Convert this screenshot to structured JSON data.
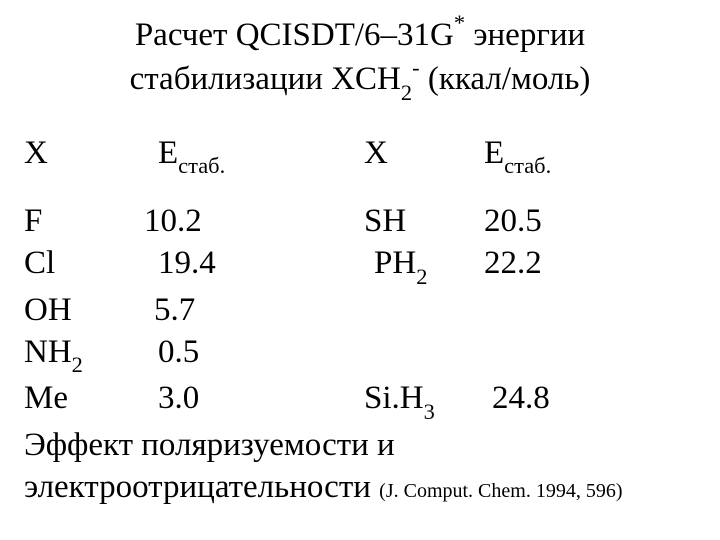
{
  "title": {
    "line1_prefix": "Расчет QCISDT/6–31G",
    "line1_sup": "*",
    "line1_suffix": " энергии",
    "line2_prefix": "стабилизации XCH",
    "line2_sub": "2",
    "line2_sup": "-",
    "line2_suffix": " (ккал/моль)"
  },
  "headers": {
    "X": "X",
    "E_prefix": "E",
    "E_sub": "стаб."
  },
  "rows": [
    {
      "x1": "F",
      "x1_sub": "",
      "e1": "10.2",
      "x2": "SH",
      "x2_sub": "",
      "e2": "20.5",
      "e1_pad": 0,
      "e2_pad": 0
    },
    {
      "x1": "Cl",
      "x1_sub": "",
      "e1": "19.4",
      "x2": "PH",
      "x2_sub": "2",
      "e2": "22.2",
      "e1_pad": 14,
      "e2_pad": 0
    },
    {
      "x1": "OH",
      "x1_sub": "",
      "e1": "5.7",
      "x2": "",
      "x2_sub": "",
      "e2": "",
      "e1_pad": 10,
      "e2_pad": 0
    },
    {
      "x1": "NH",
      "x1_sub": "2",
      "e1": "0.5",
      "x2": "",
      "x2_sub": "",
      "e2": "",
      "e1_pad": 14,
      "e2_pad": 0
    },
    {
      "x1": "Me",
      "x1_sub": "",
      "e1": "3.0",
      "x2": "Si.H",
      "x2_sub": "3",
      "e2": "24.8",
      "e1_pad": 14,
      "e2_pad": 8
    }
  ],
  "footnote": {
    "line1": "Эффект поляризуемости и",
    "line2_main": "электроотрицательности ",
    "citation": "(J. Comput. Chem. 1994, 596)"
  }
}
